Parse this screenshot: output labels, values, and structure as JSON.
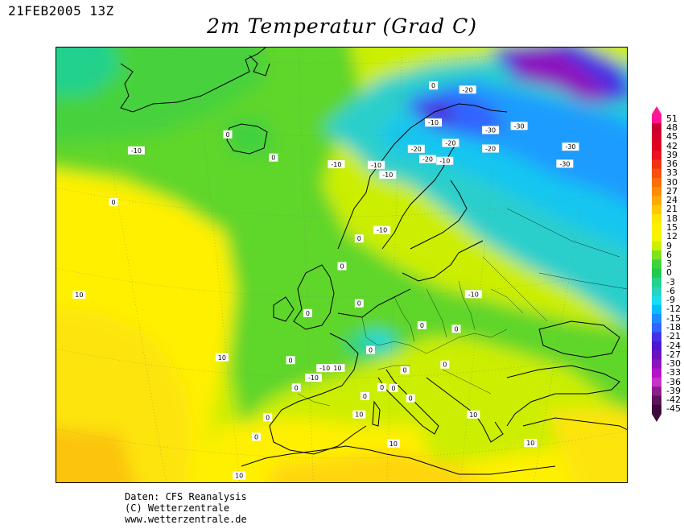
{
  "header": {
    "date": "21FEB2005 13Z",
    "title": "2m Temperatur (Grad C)"
  },
  "legend": {
    "labels": [
      "51",
      "48",
      "45",
      "42",
      "39",
      "36",
      "33",
      "30",
      "27",
      "24",
      "21",
      "18",
      "15",
      "12",
      "9",
      "6",
      "3",
      "0",
      "-3",
      "-6",
      "-9",
      "-12",
      "-15",
      "-18",
      "-21",
      "-24",
      "-27",
      "-30",
      "-33",
      "-36",
      "-39",
      "-42",
      "-45"
    ],
    "colors": [
      "#ff1493",
      "#c8002e",
      "#d8002a",
      "#e00020",
      "#e8141e",
      "#f03214",
      "#f5500f",
      "#fa6e0a",
      "#fc8c08",
      "#fdaa06",
      "#fec804",
      "#ffe600",
      "#fff000",
      "#f5f500",
      "#ccee00",
      "#7ee21e",
      "#3fd23f",
      "#22c850",
      "#23d28c",
      "#2ad2bf",
      "#19dcf0",
      "#00beff",
      "#1e8cff",
      "#3264ff",
      "#4632e6",
      "#5014d2",
      "#6a14be",
      "#8c14be",
      "#b414c8",
      "#c832c8",
      "#8c1e8c",
      "#5a145a",
      "#3c0a3c"
    ]
  },
  "map": {
    "contour_labels": [
      {
        "text": "-10",
        "lon": -26,
        "lat": 72
      },
      {
        "text": "-10",
        "lon": 9,
        "lat": 68
      },
      {
        "text": "-10",
        "lon": 16,
        "lat": 68
      },
      {
        "text": "-10",
        "lon": 26,
        "lat": 73
      },
      {
        "text": "-10",
        "lon": 17,
        "lat": 61
      },
      {
        "text": "-10",
        "lon": 33,
        "lat": 55
      },
      {
        "text": "-10",
        "lon": 9,
        "lat": 46
      },
      {
        "text": "-10",
        "lon": 7,
        "lat": 46
      },
      {
        "text": "-10",
        "lon": 5,
        "lat": 45
      },
      {
        "text": "-10",
        "lon": 18,
        "lat": 67
      },
      {
        "text": "-10",
        "lon": 28,
        "lat": 69
      },
      {
        "text": "-20",
        "lon": 32,
        "lat": 77
      },
      {
        "text": "-20",
        "lon": 29,
        "lat": 71
      },
      {
        "text": "-20",
        "lon": 23,
        "lat": 70
      },
      {
        "text": "-20",
        "lon": 25,
        "lat": 69
      },
      {
        "text": "-20",
        "lon": 36,
        "lat": 71
      },
      {
        "text": "-20",
        "lon": 62,
        "lat": 70
      },
      {
        "text": "-30",
        "lon": 41,
        "lat": 74
      },
      {
        "text": "-30",
        "lon": 49,
        "lat": 71
      },
      {
        "text": "-30",
        "lon": 50,
        "lat": 73
      },
      {
        "text": "-30",
        "lon": 36,
        "lat": 73
      },
      {
        "text": "0",
        "lon": -30,
        "lat": 67
      },
      {
        "text": "0",
        "lon": -10,
        "lat": 72
      },
      {
        "text": "0",
        "lon": -2,
        "lat": 69
      },
      {
        "text": "0",
        "lon": 26,
        "lat": 77
      },
      {
        "text": "0",
        "lon": 22,
        "lat": 43
      },
      {
        "text": "0",
        "lon": 13,
        "lat": 53
      },
      {
        "text": "0",
        "lon": 24,
        "lat": 51
      },
      {
        "text": "0",
        "lon": 28,
        "lat": 47
      },
      {
        "text": "0",
        "lon": 15,
        "lat": 48
      },
      {
        "text": "0",
        "lon": 10,
        "lat": 57
      },
      {
        "text": "0",
        "lon": 4,
        "lat": 52
      },
      {
        "text": "0",
        "lon": 1,
        "lat": 47
      },
      {
        "text": "0",
        "lon": -3,
        "lat": 41
      },
      {
        "text": "0",
        "lon": -5,
        "lat": 39
      },
      {
        "text": "0",
        "lon": 2,
        "lat": 44
      },
      {
        "text": "0",
        "lon": 14,
        "lat": 43
      },
      {
        "text": "0",
        "lon": 17,
        "lat": 44
      },
      {
        "text": "0",
        "lon": 19,
        "lat": 44
      },
      {
        "text": "0",
        "lon": 21,
        "lat": 46
      },
      {
        "text": "0",
        "lon": 13,
        "lat": 60
      },
      {
        "text": "0",
        "lon": 30,
        "lat": 51
      },
      {
        "text": "10",
        "lon": -36,
        "lat": 58
      },
      {
        "text": "10",
        "lon": -11,
        "lat": 48
      },
      {
        "text": "10",
        "lon": 13,
        "lat": 41
      },
      {
        "text": "10",
        "lon": 19,
        "lat": 38
      },
      {
        "text": "10",
        "lon": 33,
        "lat": 42
      },
      {
        "text": "10",
        "lon": 43,
        "lat": 40
      },
      {
        "text": "10",
        "lon": -8,
        "lat": 35
      },
      {
        "text": "10",
        "lon": 15,
        "lat": 33
      },
      {
        "text": "10",
        "lon": 45,
        "lat": 35
      }
    ]
  },
  "credits": {
    "line1": "Daten: CFS Reanalysis",
    "line2": "(C) Wetterzentrale",
    "line3": "www.wetterzentrale.de"
  }
}
